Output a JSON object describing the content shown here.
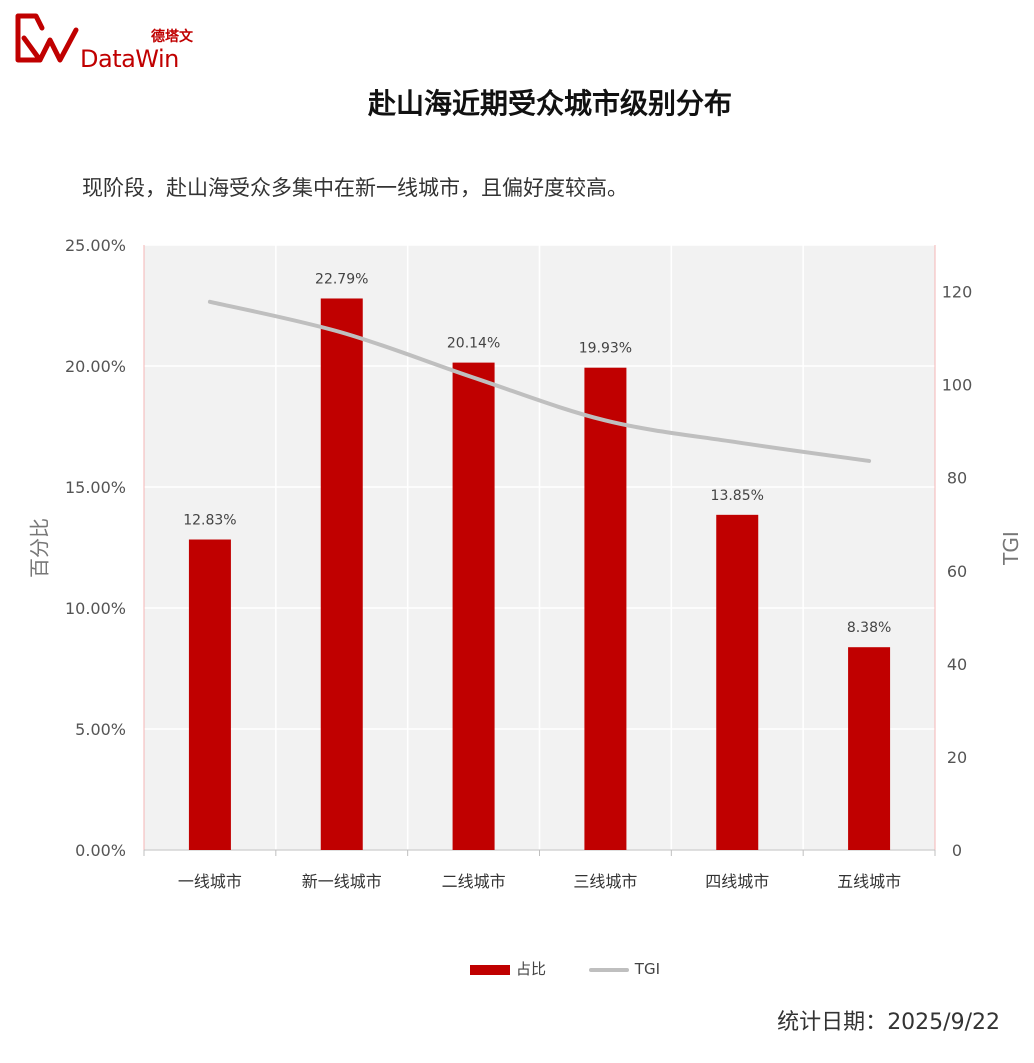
{
  "brand": {
    "cn": "德塔文",
    "en": "DataWin",
    "color": "#c00000"
  },
  "title": "赴山海近期受众城市级别分布",
  "subtitle": "现阶段，赴山海受众多集中在新一线城市，且偏好度较高。",
  "footer": {
    "label": "统计日期：",
    "date": "2025/9/22"
  },
  "chart_data": {
    "type": "bar",
    "title": "赴山海近期受众城市级别分布",
    "categories": [
      "一线城市",
      "新一线城市",
      "二线城市",
      "三线城市",
      "四线城市",
      "五线城市"
    ],
    "series": [
      {
        "name": "占比",
        "type": "bar",
        "axis": "left",
        "values": [
          12.83,
          22.79,
          20.14,
          19.93,
          13.85,
          8.38
        ],
        "labels": [
          "12.83%",
          "22.79%",
          "20.14%",
          "19.93%",
          "13.85%",
          "8.38%"
        ],
        "color": "#c00000"
      },
      {
        "name": "TGI",
        "type": "line",
        "axis": "right",
        "values": [
          117.8,
          111.2,
          101.5,
          92.3,
          87.6,
          83.6
        ],
        "color": "#bfbfbf"
      }
    ],
    "ylabel": "百分比",
    "ylabel_right": "TGI",
    "ylim": [
      0,
      25
    ],
    "ylim_right": [
      0,
      130
    ],
    "yticks": [
      "0.00%",
      "5.00%",
      "10.00%",
      "15.00%",
      "20.00%",
      "25.00%"
    ],
    "yticks_right": [
      "0",
      "20",
      "40",
      "60",
      "80",
      "100",
      "120"
    ],
    "grid": true,
    "legend": "bottom",
    "plot_background": "#f2f2f2"
  }
}
